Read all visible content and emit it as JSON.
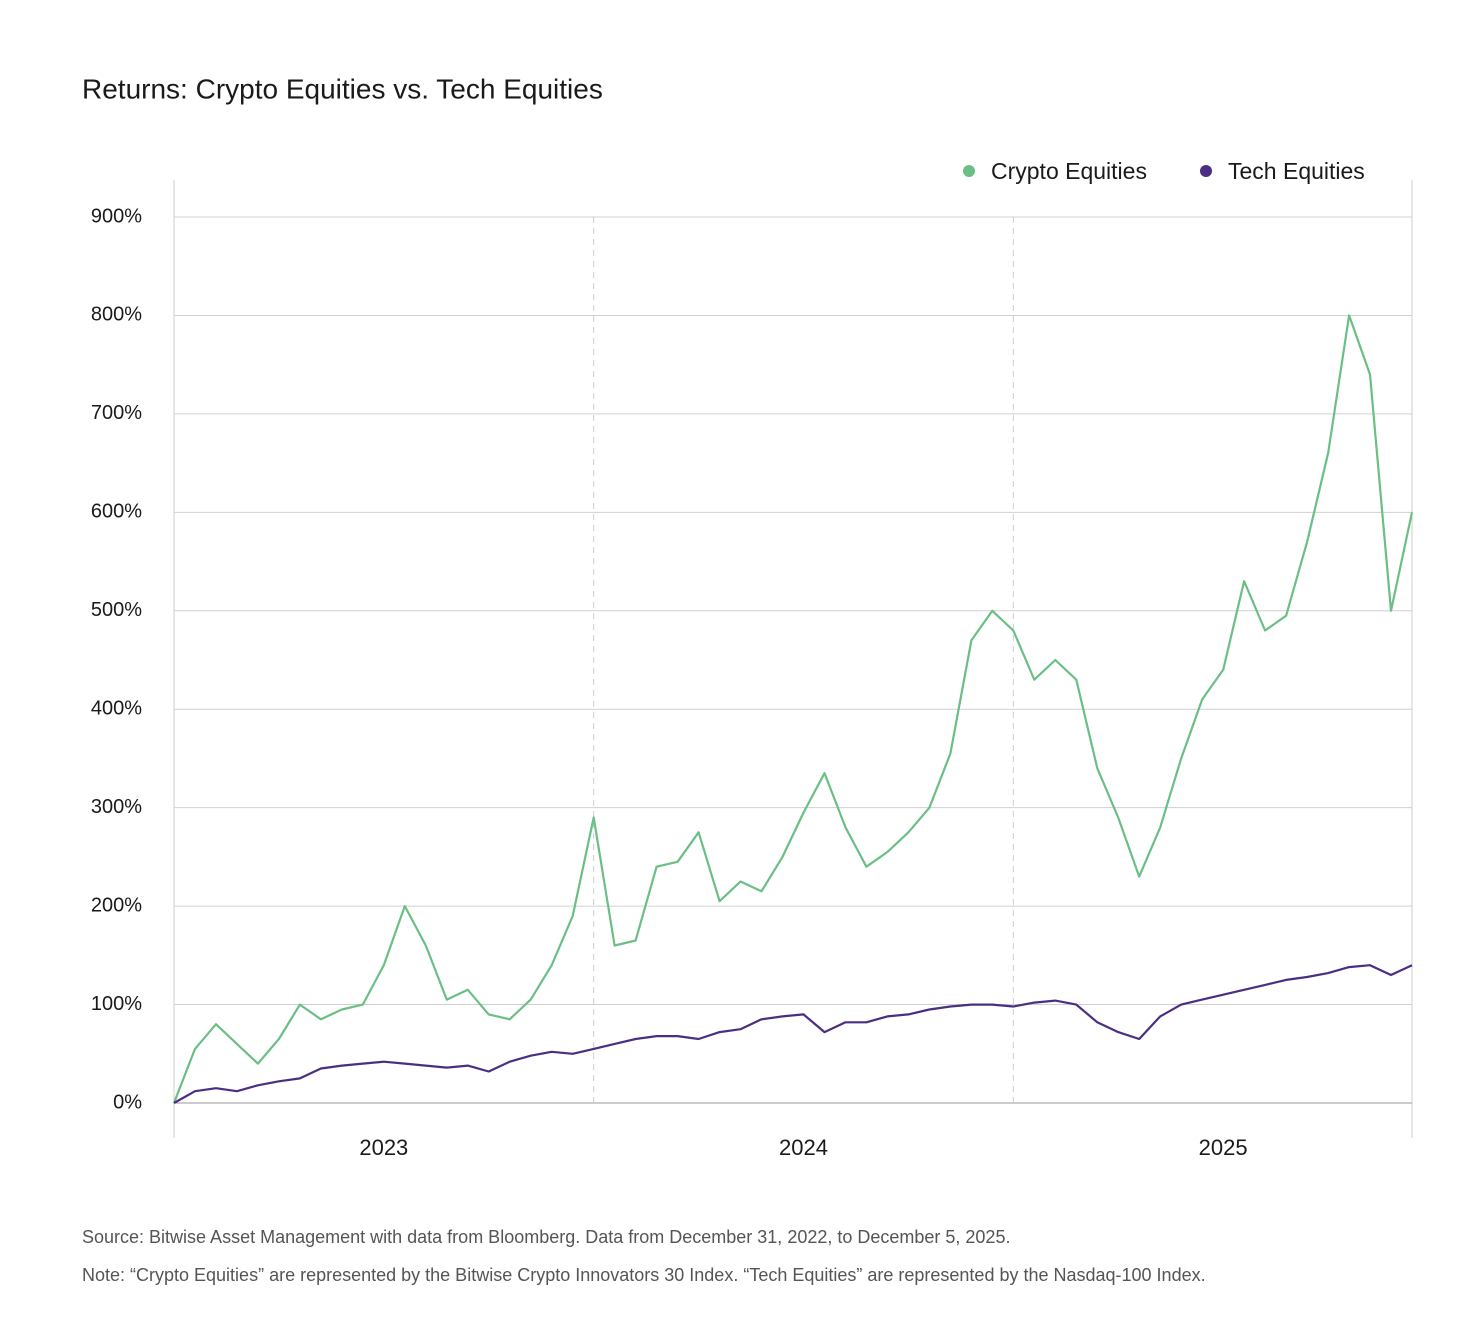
{
  "chart_data": {
    "type": "line",
    "title": "Returns: Crypto Equities vs. Tech Equities",
    "source": "Source: Bitwise Asset Management with data from Bloomberg. Data from December 31, 2022, to December 5, 2025.",
    "note": "Note: “Crypto Equities” are represented by the Bitwise Crypto Innovators 30 Index. “Tech Equities” are represented by the Nasdaq-100 Index.",
    "x": [
      2023.0,
      2023.05,
      2023.1,
      2023.15,
      2023.2,
      2023.25,
      2023.3,
      2023.35,
      2023.4,
      2023.45,
      2023.5,
      2023.55,
      2023.6,
      2023.65,
      2023.7,
      2023.75,
      2023.8,
      2023.85,
      2023.9,
      2023.95,
      2024.0,
      2024.05,
      2024.1,
      2024.15,
      2024.2,
      2024.25,
      2024.3,
      2024.35,
      2024.4,
      2024.45,
      2024.5,
      2024.55,
      2024.6,
      2024.65,
      2024.7,
      2024.75,
      2024.8,
      2024.85,
      2024.9,
      2024.95,
      2025.0,
      2025.05,
      2025.1,
      2025.15,
      2025.2,
      2025.25,
      2025.3,
      2025.35,
      2025.4,
      2025.45,
      2025.5,
      2025.55,
      2025.6,
      2025.65,
      2025.7,
      2025.75,
      2025.8,
      2025.85,
      2025.9,
      2025.95
    ],
    "series": [
      {
        "name": "Crypto Equities",
        "color": "#6bbf84",
        "values": [
          0,
          55,
          80,
          60,
          40,
          65,
          100,
          85,
          95,
          100,
          140,
          200,
          160,
          105,
          115,
          90,
          85,
          105,
          140,
          190,
          290,
          160,
          165,
          240,
          245,
          275,
          205,
          225,
          215,
          250,
          295,
          335,
          280,
          240,
          255,
          275,
          300,
          355,
          470,
          500,
          480,
          430,
          450,
          430,
          340,
          290,
          230,
          280,
          350,
          410,
          440,
          530,
          480,
          495,
          570,
          660,
          800,
          740,
          500,
          600
        ]
      },
      {
        "name": "Tech Equities",
        "color": "#4b2e83",
        "values": [
          0,
          12,
          15,
          12,
          18,
          22,
          25,
          35,
          38,
          40,
          42,
          40,
          38,
          36,
          38,
          32,
          42,
          48,
          52,
          50,
          55,
          60,
          65,
          68,
          68,
          65,
          72,
          75,
          85,
          88,
          90,
          72,
          82,
          82,
          88,
          90,
          95,
          98,
          100,
          100,
          98,
          102,
          104,
          100,
          82,
          72,
          65,
          88,
          100,
          105,
          110,
          115,
          120,
          125,
          128,
          132,
          138,
          140,
          130,
          140
        ]
      }
    ],
    "xlim": [
      2023.0,
      2025.95
    ],
    "xticks": [
      {
        "value": 2023.5,
        "label": "2023"
      },
      {
        "value": 2024.5,
        "label": "2024"
      },
      {
        "value": 2025.5,
        "label": "2025"
      }
    ],
    "x_gridlines": [
      2024,
      2025
    ],
    "ylim": [
      0,
      900
    ],
    "yticks": [
      {
        "value": 0,
        "label": "0%"
      },
      {
        "value": 100,
        "label": "100%"
      },
      {
        "value": 200,
        "label": "200%"
      },
      {
        "value": 300,
        "label": "300%"
      },
      {
        "value": 400,
        "label": "400%"
      },
      {
        "value": 500,
        "label": "500%"
      },
      {
        "value": 600,
        "label": "600%"
      },
      {
        "value": 700,
        "label": "700%"
      },
      {
        "value": 800,
        "label": "800%"
      },
      {
        "value": 900,
        "label": "900%"
      }
    ],
    "grid": true,
    "legend": "top-right"
  }
}
